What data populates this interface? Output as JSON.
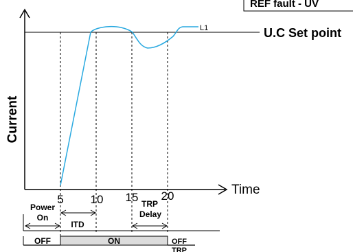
{
  "corner_label": "REF fault - UV",
  "set_point_label": "U.C Set point",
  "y_axis_label": "Current",
  "x_axis_label": "Time",
  "ticks": [
    "5",
    "10",
    "15",
    "20"
  ],
  "curve_label": "L1",
  "timing": {
    "power_on_line1": "Power",
    "power_on_line2": "On",
    "itd": "ITD",
    "trp_delay_line1": "TRP",
    "trp_delay_line2": "Delay"
  },
  "state_bar": {
    "off_left": "OFF",
    "on": "ON",
    "off_right_line1": "OFF",
    "off_right_line2": "TRP"
  },
  "colors": {
    "curve": "#29a9e0",
    "on_fill": "#dcdcdc"
  }
}
